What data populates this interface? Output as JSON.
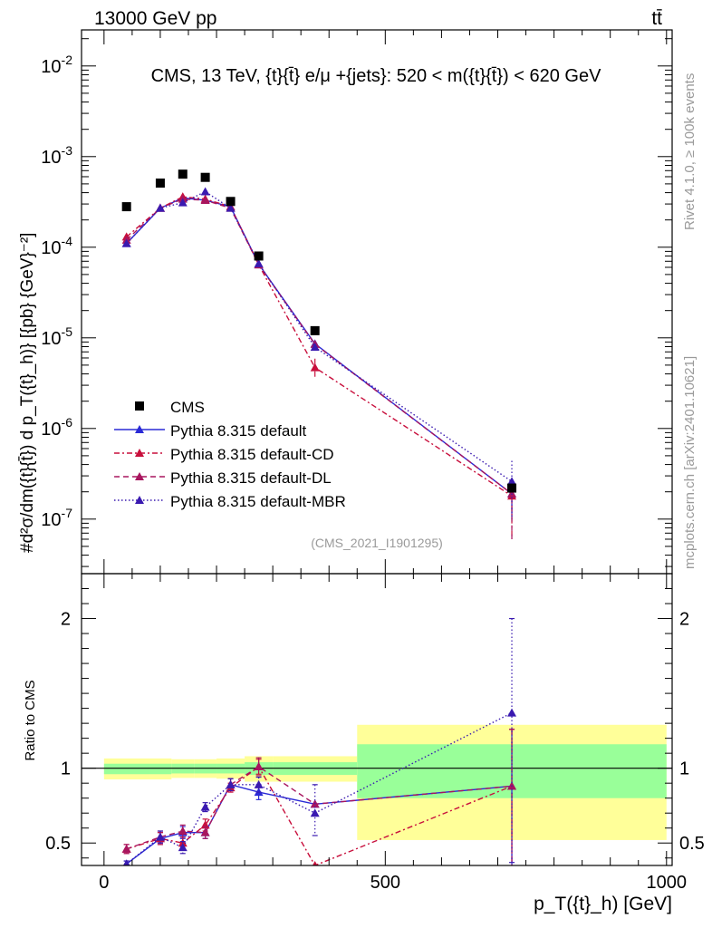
{
  "header": {
    "left_label": "13000 GeV pp",
    "right_label": "tt̄"
  },
  "side_labels": {
    "rivet": "Rivet 4.1.0, ≥ 100k events",
    "mcplots": "mcplots.cern.ch [arXiv:2401.10621]"
  },
  "chart_data": [
    {
      "panel": "main",
      "type": "scatter",
      "title": "CMS, 13 TeV, {t}{t̄} e/μ +{jets}: 520 < m({t}{t̄}) < 620 GeV",
      "ylabel": "#d²σ/dm({t}{t̄}) d p_T({t}_h)} [{pb} {GeV}⁻²]",
      "yscale": "log",
      "xlim": [
        -40,
        1010
      ],
      "ylim": [
        2.5e-08,
        0.025
      ],
      "y_ticks": [
        {
          "value": 1e-07,
          "label_base": "10",
          "label_exp": "-7"
        },
        {
          "value": 1e-06,
          "label_base": "10",
          "label_exp": "-6"
        },
        {
          "value": 1e-05,
          "label_base": "10",
          "label_exp": "-5"
        },
        {
          "value": 0.0001,
          "label_base": "10",
          "label_exp": "-4"
        },
        {
          "value": 0.001,
          "label_base": "10",
          "label_exp": "-3"
        },
        {
          "value": 0.01,
          "label_base": "10",
          "label_exp": "-2"
        }
      ],
      "watermark": "(CMS_2021_I1901295)",
      "legend_position": "lower-left",
      "data": {
        "name": "CMS",
        "color": "#000000",
        "x": [
          40,
          100,
          140,
          180,
          225,
          275,
          375,
          725
        ],
        "y": [
          0.00028,
          0.00051,
          0.00064,
          0.00059,
          0.00032,
          8e-05,
          1.2e-05,
          2.2e-07
        ]
      },
      "series": [
        {
          "name": "Pythia 8.315 default",
          "color": "#2a2ad6",
          "dash": "solid",
          "x": [
            40,
            100,
            140,
            180,
            225,
            275,
            375,
            725
          ],
          "y": [
            0.00011,
            0.00027,
            0.00035,
            0.00033,
            0.00028,
            6.5e-05,
            8.6e-06,
            1.9e-07
          ],
          "err_up": [
            null,
            null,
            null,
            null,
            null,
            null,
            null,
            8e-08
          ],
          "err_down": [
            null,
            null,
            null,
            null,
            null,
            null,
            null,
            9e-08
          ]
        },
        {
          "name": "Pythia 8.315 default-CD",
          "color": "#c80f3c",
          "dash": "6,3,2,3",
          "x": [
            40,
            100,
            140,
            180,
            225,
            275,
            375,
            725
          ],
          "y": [
            0.00013,
            0.00027,
            0.00036,
            0.00034,
            0.00028,
            6.4e-05,
            4.7e-06,
            1.8e-07
          ],
          "err_up": [
            null,
            null,
            null,
            null,
            null,
            null,
            1.2e-06,
            9e-08
          ],
          "err_down": [
            null,
            null,
            null,
            null,
            null,
            null,
            1.1e-06,
            1.2e-07
          ]
        },
        {
          "name": "Pythia 8.315 default-DL",
          "color": "#a8155e",
          "dash": "6,4",
          "x": [
            40,
            100,
            140,
            180,
            225,
            275,
            375,
            725
          ],
          "y": [
            0.00012,
            0.00027,
            0.00034,
            0.00033,
            0.00027,
            6.4e-05,
            8.5e-06,
            1.9e-07
          ],
          "err_up": [
            null,
            null,
            null,
            null,
            null,
            null,
            null,
            8e-08
          ],
          "err_down": [
            null,
            null,
            null,
            null,
            null,
            null,
            null,
            1.3e-07
          ]
        },
        {
          "name": "Pythia 8.315 default-MBR",
          "color": "#3a1ab0",
          "dash": "1.5,2.5",
          "x": [
            40,
            100,
            140,
            180,
            225,
            275,
            375,
            725
          ],
          "y": [
            0.00011,
            0.00027,
            0.00031,
            0.00041,
            0.00027,
            6.6e-05,
            7.9e-06,
            2.6e-07
          ],
          "err_up": [
            null,
            null,
            null,
            null,
            null,
            null,
            null,
            1.8e-07
          ],
          "err_down": [
            null,
            null,
            null,
            null,
            null,
            null,
            null,
            1.6e-07
          ]
        }
      ]
    },
    {
      "panel": "ratio",
      "type": "line",
      "ylabel": "Ratio to CMS",
      "xlabel": "p_T({t}_h) [GeV]",
      "xlim": [
        -40,
        1010
      ],
      "ylim": [
        0.35,
        2.3
      ],
      "x_ticks": [
        0,
        500,
        1000
      ],
      "y_ticks": [
        0.5,
        1,
        2
      ],
      "reference_line": 1,
      "uncertainty_bands": {
        "bin_edges": [
          0,
          80,
          120,
          160,
          200,
          250,
          300,
          450,
          1000
        ],
        "inner_color": "#99ff99",
        "outer_color": "#ffff99",
        "inner_lo": [
          0.96,
          0.96,
          0.965,
          0.965,
          0.965,
          0.955,
          0.955,
          0.8
        ],
        "inner_hi": [
          1.03,
          1.03,
          1.03,
          1.03,
          1.03,
          1.04,
          1.04,
          1.16
        ],
        "outer_lo": [
          0.925,
          0.925,
          0.935,
          0.935,
          0.93,
          0.91,
          0.91,
          0.52
        ],
        "outer_hi": [
          1.065,
          1.065,
          1.06,
          1.06,
          1.065,
          1.08,
          1.08,
          1.29
        ]
      },
      "series": [
        {
          "name": "Pythia 8.315 default",
          "color": "#2a2ad6",
          "dash": "solid",
          "x": [
            40,
            100,
            140,
            180,
            225,
            275,
            375,
            725
          ],
          "y": [
            0.36,
            0.53,
            0.57,
            0.57,
            0.89,
            0.84,
            0.76,
            0.88
          ],
          "err_up": [
            0.02,
            0.04,
            0.04,
            0.04,
            0.04,
            0.05,
            0.0,
            0.38
          ],
          "err_down": [
            0.02,
            0.04,
            0.04,
            0.04,
            0.04,
            0.05,
            0.0,
            0.6
          ]
        },
        {
          "name": "Pythia 8.315 default-CD",
          "color": "#c80f3c",
          "dash": "6,3,2,3",
          "x": [
            40,
            100,
            140,
            180,
            225,
            275,
            375,
            725
          ],
          "y": [
            0.46,
            0.53,
            0.5,
            0.62,
            0.87,
            1.01,
            0.35,
            0.88
          ],
          "err_up": [
            0.03,
            0.04,
            0.04,
            0.04,
            0.03,
            0.05,
            0.0,
            0.38
          ],
          "err_down": [
            0.03,
            0.04,
            0.04,
            0.04,
            0.03,
            0.05,
            0.0,
            0.6
          ]
        },
        {
          "name": "Pythia 8.315 default-DL",
          "color": "#a8155e",
          "dash": "6,4",
          "x": [
            40,
            100,
            140,
            180,
            225,
            275,
            375,
            725
          ],
          "y": [
            0.46,
            0.54,
            0.58,
            0.57,
            0.89,
            1.01,
            0.76,
            0.88
          ],
          "err_up": [
            0.03,
            0.04,
            0.04,
            0.04,
            0.04,
            0.06,
            0.0,
            0.38
          ],
          "err_down": [
            0.03,
            0.04,
            0.04,
            0.04,
            0.04,
            0.06,
            0.0,
            0.6
          ]
        },
        {
          "name": "Pythia 8.315 default-MBR",
          "color": "#3a1ab0",
          "dash": "1.5,2.5",
          "x": [
            40,
            100,
            140,
            180,
            225,
            275,
            375,
            725
          ],
          "y": [
            0.36,
            0.54,
            0.47,
            0.74,
            0.89,
            0.89,
            0.7,
            1.37
          ],
          "err_up": [
            0.02,
            0.04,
            0.04,
            0.03,
            0.04,
            0.05,
            0.19,
            0.63
          ],
          "err_down": [
            0.02,
            0.04,
            0.04,
            0.03,
            0.04,
            0.05,
            0.15,
            1.0
          ]
        }
      ]
    }
  ]
}
